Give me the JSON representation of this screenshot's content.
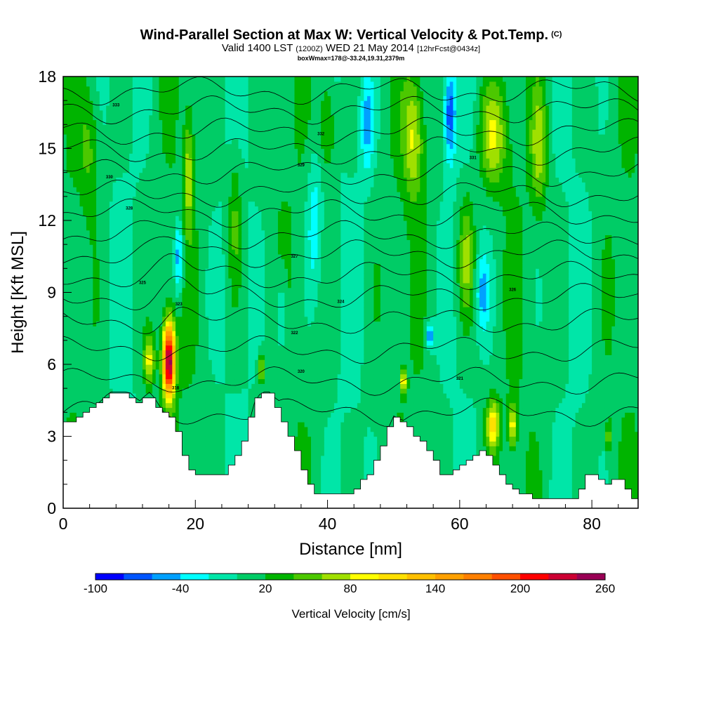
{
  "title": {
    "main": "Wind-Parallel Section at Max W: Vertical Velocity & Pot.Temp.",
    "copyright": "(C)",
    "valid_prefix": "Valid 1400 LST",
    "valid_utc": "(1200Z)",
    "valid_date": "WED 21 May 2014",
    "forecast": "[12hrFcst@0434z]",
    "note": "boxWmax=178@-33.24,19.31,2379m"
  },
  "chart_data": {
    "type": "heatmap",
    "xlabel": "Distance [nm]",
    "ylabel": "Height [Kft MSL]",
    "xlim": [
      0,
      87
    ],
    "ylim": [
      0,
      18
    ],
    "x_ticks": [
      "0",
      "20",
      "40",
      "60",
      "80"
    ],
    "y_ticks": [
      "0",
      "3",
      "6",
      "9",
      "12",
      "15",
      "18"
    ],
    "colorbar": {
      "title": "Vertical Velocity [cm/s]",
      "tick_labels": [
        "-100",
        "-40",
        "20",
        "80",
        "140",
        "200",
        "260"
      ],
      "levels": [
        -100,
        -80,
        -60,
        -40,
        -20,
        0,
        20,
        40,
        60,
        80,
        100,
        120,
        140,
        160,
        180,
        200,
        220,
        240,
        260
      ],
      "colors": [
        "#0000ff",
        "#0055ff",
        "#00a0ff",
        "#00ffff",
        "#00e6a8",
        "#00cc66",
        "#00b400",
        "#4cc800",
        "#a0e000",
        "#ffff00",
        "#ffe000",
        "#ffc000",
        "#ffa000",
        "#ff8000",
        "#ff5000",
        "#ff0000",
        "#cc0033",
        "#990055"
      ]
    },
    "terrain": [
      [
        0,
        3.6
      ],
      [
        2,
        3.6
      ],
      [
        4,
        4
      ],
      [
        6,
        4.5
      ],
      [
        7,
        4.8
      ],
      [
        10,
        4.8
      ],
      [
        11.5,
        4.4
      ],
      [
        13,
        4.8
      ],
      [
        14,
        4.5
      ],
      [
        15,
        4
      ],
      [
        17,
        3.6
      ],
      [
        18,
        2.6
      ],
      [
        19.5,
        1.5
      ],
      [
        21,
        1.3
      ],
      [
        24,
        1.3
      ],
      [
        26,
        2
      ],
      [
        28,
        3
      ],
      [
        29,
        4.4
      ],
      [
        30,
        4.8
      ],
      [
        31.5,
        4.8
      ],
      [
        33,
        4
      ],
      [
        35,
        2.7
      ],
      [
        36.5,
        1.6
      ],
      [
        38,
        0.7
      ],
      [
        44,
        0.7
      ],
      [
        47,
        1.6
      ],
      [
        49,
        3
      ],
      [
        50,
        3.8
      ],
      [
        52,
        3.5
      ],
      [
        54,
        2.9
      ],
      [
        56,
        2.2
      ],
      [
        58,
        1.2
      ],
      [
        61,
        1.8
      ],
      [
        63,
        2.4
      ],
      [
        65,
        2.1
      ],
      [
        67,
        1.2
      ],
      [
        70,
        0.6
      ],
      [
        73,
        0.3
      ],
      [
        78,
        0.4
      ],
      [
        79,
        1.3
      ],
      [
        81,
        1.3
      ],
      [
        82,
        0.9
      ],
      [
        84,
        1.3
      ],
      [
        86,
        0.6
      ],
      [
        87,
        0.3
      ]
    ],
    "w_features": [
      {
        "x": 16,
        "y": 6.2,
        "sx": 0.9,
        "sy": 1.6,
        "w": 250
      },
      {
        "x": 13,
        "y": 6.2,
        "sx": 0.8,
        "sy": 1.0,
        "w": 80
      },
      {
        "x": 17.5,
        "y": 10.5,
        "sx": 0.6,
        "sy": 1.5,
        "w": -70
      },
      {
        "x": 19,
        "y": 14,
        "sx": 0.7,
        "sy": 2.5,
        "w": 60
      },
      {
        "x": 51.5,
        "y": 5.3,
        "sx": 0.4,
        "sy": 0.5,
        "w": 100
      },
      {
        "x": 55.5,
        "y": 7.2,
        "sx": 0.6,
        "sy": 0.6,
        "w": -70
      },
      {
        "x": 58.5,
        "y": 16.5,
        "sx": 0.9,
        "sy": 2.0,
        "w": -80
      },
      {
        "x": 53,
        "y": 15.5,
        "sx": 1.5,
        "sy": 2.5,
        "w": 70
      },
      {
        "x": 61,
        "y": 10.5,
        "sx": 1.2,
        "sy": 2.5,
        "w": 60
      },
      {
        "x": 65,
        "y": 3.5,
        "sx": 1.0,
        "sy": 1.0,
        "w": 100
      },
      {
        "x": 68,
        "y": 3.5,
        "sx": 0.6,
        "sy": 0.9,
        "w": 80
      },
      {
        "x": 65,
        "y": 15.5,
        "sx": 2.0,
        "sy": 2.0,
        "w": 70
      },
      {
        "x": 63.5,
        "y": 9,
        "sx": 1.0,
        "sy": 1.5,
        "w": -50
      },
      {
        "x": 46,
        "y": 16,
        "sx": 1.0,
        "sy": 2.0,
        "w": -50
      },
      {
        "x": 38,
        "y": 12,
        "sx": 1.2,
        "sy": 3.0,
        "w": -40
      },
      {
        "x": 40,
        "y": 16,
        "sx": 1.2,
        "sy": 2.0,
        "w": 45
      },
      {
        "x": 72,
        "y": 15,
        "sx": 1.2,
        "sy": 2.5,
        "w": 60
      },
      {
        "x": 82.5,
        "y": 3,
        "sx": 0.3,
        "sy": 0.6,
        "w": 80
      },
      {
        "x": 4,
        "y": 15,
        "sx": 1.5,
        "sy": 2.5,
        "w": 35
      },
      {
        "x": 26,
        "y": 12,
        "sx": 1.0,
        "sy": 3.0,
        "w": 40
      },
      {
        "x": 33,
        "y": 8,
        "sx": 1.0,
        "sy": 2.0,
        "w": -40
      },
      {
        "x": 30,
        "y": 5.8,
        "sx": 0.5,
        "sy": 0.6,
        "w": 70
      }
    ],
    "theta_contours": [
      {
        "label": "318",
        "h": 4.0,
        "lx": 17,
        "ly": 5.0
      },
      {
        "label": "320",
        "h": 5.3,
        "lx": 36,
        "ly": 5.7
      },
      {
        "label": "321",
        "h": 6.6,
        "lx": 60,
        "ly": 5.4
      },
      {
        "label": "322",
        "h": 7.8,
        "lx": 35,
        "ly": 7.3
      },
      {
        "label": "323",
        "h": 8.8,
        "lx": 17.5,
        "ly": 8.5
      },
      {
        "label": "324",
        "h": 9.7,
        "lx": 42,
        "ly": 8.6
      },
      {
        "label": "325",
        "h": 10.6,
        "lx": 12,
        "ly": 9.4
      },
      {
        "label": "326",
        "h": 11.4,
        "lx": 68,
        "ly": 9.1
      },
      {
        "label": "327",
        "h": 12.3,
        "lx": 35,
        "ly": 10.5
      },
      {
        "label": "328",
        "h": 13.1,
        "lx": 10,
        "ly": 12.5
      },
      {
        "label": "329",
        "h": 14.0,
        "lx": 36,
        "ly": 14.3
      },
      {
        "label": "330",
        "h": 14.9,
        "lx": 7,
        "ly": 13.8
      },
      {
        "label": "331",
        "h": 15.7,
        "lx": 62,
        "ly": 14.6
      },
      {
        "label": "332",
        "h": 16.6,
        "lx": 39,
        "ly": 15.6
      },
      {
        "label": "333",
        "h": 17.4,
        "lx": 8,
        "ly": 16.8
      }
    ]
  }
}
